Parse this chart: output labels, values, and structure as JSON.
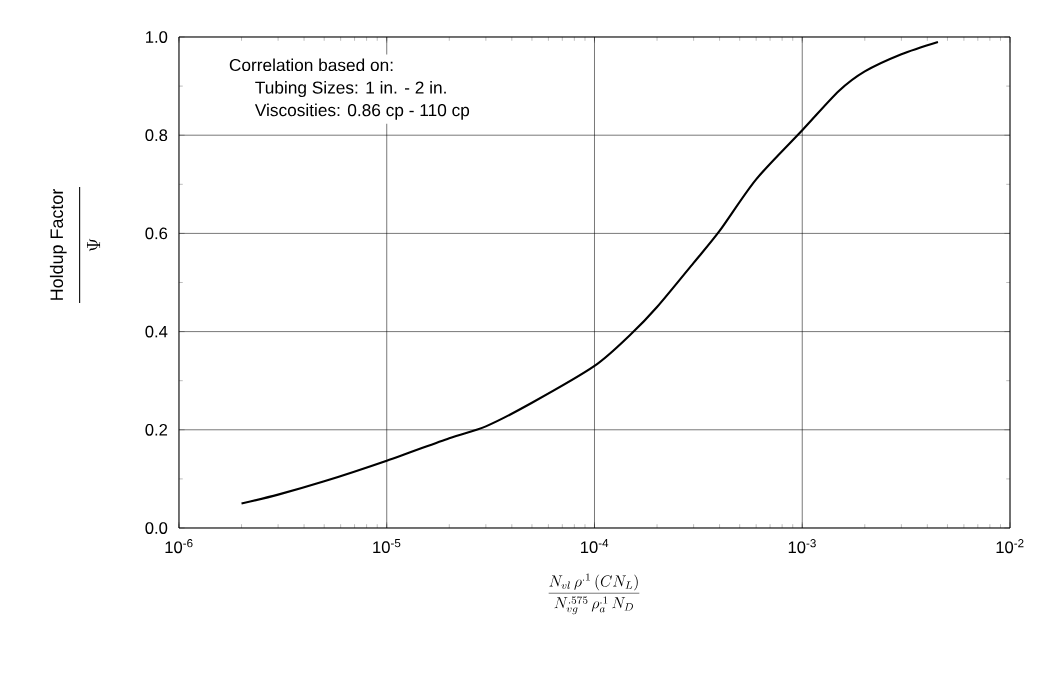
{
  "chart_data": {
    "type": "line",
    "xlabel": "\\frac{N_{vl}\\,\\rho^{.1}\\,(CN_L)}{N_{vg}^{.575}\\,\\rho_a^{.1}\\,N_D}",
    "ylabel": "Holdup Factor",
    "y2label": "\\Psi",
    "log": "x",
    "grid": true,
    "marker": "none",
    "line_style": "solid",
    "xlim": [
      1e-06,
      0.01
    ],
    "ylim": [
      0,
      1
    ],
    "xticks": [
      {
        "value": 1e-06,
        "label": "10$^{-6}$"
      },
      {
        "value": 1e-05,
        "label": "10$^{-5}$"
      },
      {
        "value": 0.0001,
        "label": "10$^{-4}$"
      },
      {
        "value": 0.001,
        "label": "10$^{-3}$"
      },
      {
        "value": 0.01,
        "label": "10$^{-2}$"
      }
    ],
    "yticks": [
      {
        "value": 0,
        "label": "0.0"
      },
      {
        "value": 0.2,
        "label": "0.2"
      },
      {
        "value": 0.4,
        "label": "0.4"
      },
      {
        "value": 0.6,
        "label": "0.6"
      },
      {
        "value": 0.8,
        "label": "0.8"
      },
      {
        "value": 1,
        "label": "1.0"
      }
    ],
    "annotations": [
      "Correlation based on:",
      "Tubing Sizes:  1 in. - 2 in.",
      "Viscosities:  0.86 cp - 110 cp"
    ],
    "series": [
      {
        "color": "#000000",
        "x": [
          2e-06,
          3e-06,
          5e-06,
          1e-05,
          2e-05,
          3e-05,
          5e-05,
          0.0001,
          0.00015,
          0.0002,
          0.0003,
          0.0004,
          0.0006,
          0.001,
          0.0015,
          0.002,
          0.003,
          0.0045
        ],
        "values": [
          0.05,
          0.068,
          0.095,
          0.137,
          0.183,
          0.207,
          0.255,
          0.33,
          0.395,
          0.45,
          0.54,
          0.605,
          0.71,
          0.81,
          0.89,
          0.93,
          0.965,
          0.99
        ]
      }
    ]
  }
}
